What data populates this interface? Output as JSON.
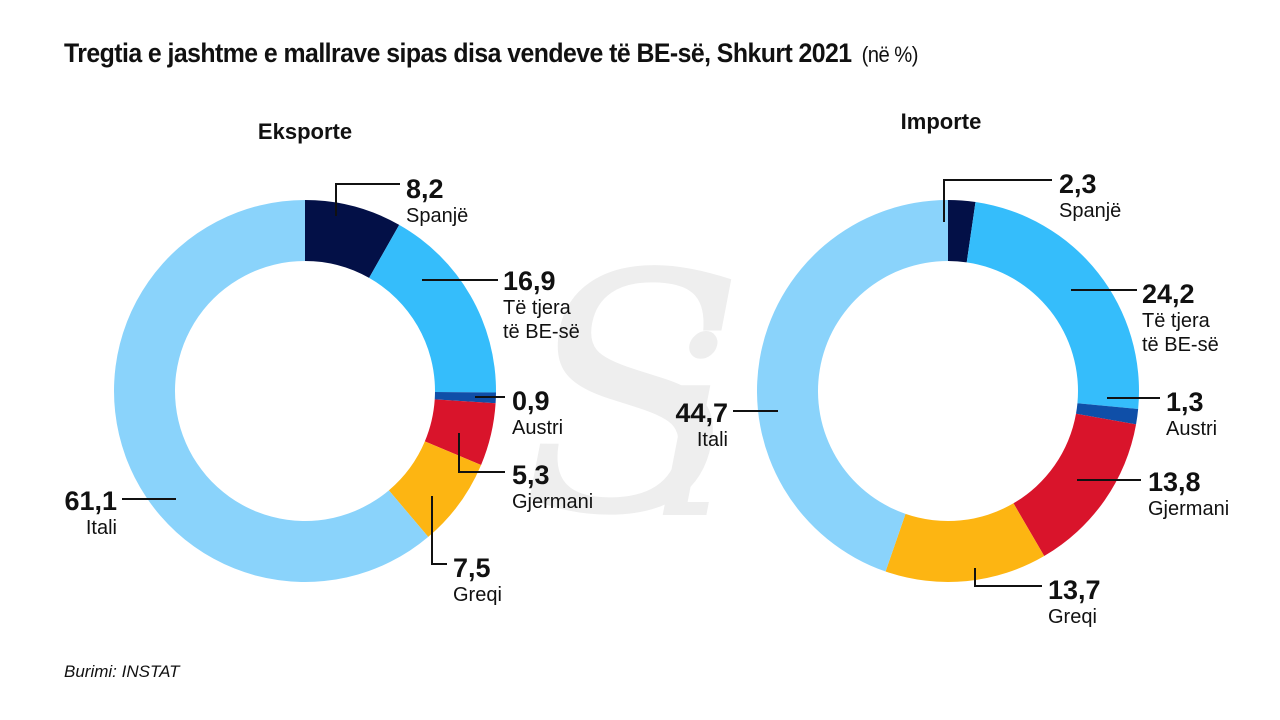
{
  "title": "Tregtia e jashtme e mallrave sipas disa vendeve të BE-së, Shkurt 2021",
  "title_unit": "(në %)",
  "source": "Burimi: INSTAT",
  "colors": {
    "Spanjë": "#031047",
    "Të tjera të BE-së": "#35bdfb",
    "Austri": "#0f4fa8",
    "Gjermani": "#d9142b",
    "Greqi": "#fdb512",
    "Itali": "#8ad3fb",
    "watermark": "#eeeeee"
  },
  "chart_data": [
    {
      "type": "pie",
      "variant": "donut",
      "title": "Eksporte",
      "categories": [
        "Spanjë",
        "Të tjera të BE-së",
        "Austri",
        "Gjermani",
        "Greqi",
        "Itali"
      ],
      "values": [
        8.2,
        16.9,
        0.9,
        5.3,
        7.5,
        61.1
      ],
      "value_labels": [
        "8,2",
        "16,9",
        "0,9",
        "5,3",
        "7,5",
        "61,1"
      ],
      "label_lines": [
        [
          "Spanjë"
        ],
        [
          "Të tjera",
          "të BE-së"
        ],
        [
          "Austri"
        ],
        [
          "Gjermani"
        ],
        [
          "Greqi"
        ],
        [
          "Itali"
        ]
      ]
    },
    {
      "type": "pie",
      "variant": "donut",
      "title": "Importe",
      "categories": [
        "Spanjë",
        "Të tjera të BE-së",
        "Austri",
        "Gjermani",
        "Greqi",
        "Itali"
      ],
      "values": [
        2.3,
        24.2,
        1.3,
        13.8,
        13.7,
        44.7
      ],
      "value_labels": [
        "2,3",
        "24,2",
        "1,3",
        "13,8",
        "13,7",
        "44,7"
      ],
      "label_lines": [
        [
          "Spanjë"
        ],
        [
          "Të tjera",
          "të BE-së"
        ],
        [
          "Austri"
        ],
        [
          "Gjermani"
        ],
        [
          "Greqi"
        ],
        [
          "Itali"
        ]
      ]
    }
  ]
}
